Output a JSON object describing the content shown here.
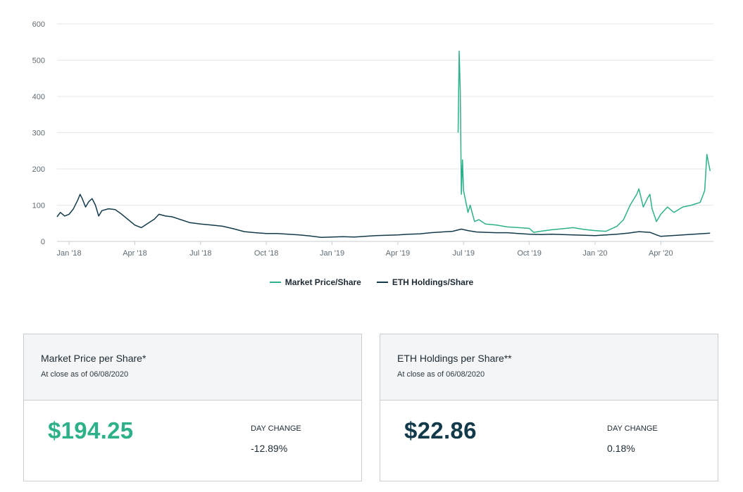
{
  "chart_data": {
    "type": "line",
    "title": "",
    "xlabel": "",
    "ylabel": "",
    "ylim": [
      0,
      600
    ],
    "y_ticks": [
      0,
      100,
      200,
      300,
      400,
      500,
      600
    ],
    "x_ticks": [
      {
        "label": "Jan '18",
        "t": 0
      },
      {
        "label": "Apr '18",
        "t": 3
      },
      {
        "label": "Jul '18",
        "t": 6
      },
      {
        "label": "Oct '18",
        "t": 9
      },
      {
        "label": "Jan '19",
        "t": 12
      },
      {
        "label": "Apr '19",
        "t": 15
      },
      {
        "label": "Jul '19",
        "t": 18
      },
      {
        "label": "Oct '19",
        "t": 21
      },
      {
        "label": "Jan '20",
        "t": 24
      },
      {
        "label": "Apr '20",
        "t": 27
      }
    ],
    "xlim": [
      -0.55,
      29.4
    ],
    "legend_position": "bottom-center",
    "series": [
      {
        "name": "Market Price/Share",
        "color": "#2eb08b",
        "points": [
          [
            17.75,
            300
          ],
          [
            17.8,
            525
          ],
          [
            17.85,
            410
          ],
          [
            17.9,
            130
          ],
          [
            17.95,
            225
          ],
          [
            18.0,
            140
          ],
          [
            18.1,
            110
          ],
          [
            18.2,
            80
          ],
          [
            18.3,
            100
          ],
          [
            18.5,
            55
          ],
          [
            18.7,
            60
          ],
          [
            19.0,
            48
          ],
          [
            19.5,
            45
          ],
          [
            20.0,
            40
          ],
          [
            20.5,
            38
          ],
          [
            21.0,
            36
          ],
          [
            21.2,
            25
          ],
          [
            21.5,
            28
          ],
          [
            22.0,
            32
          ],
          [
            22.5,
            35
          ],
          [
            23.0,
            38
          ],
          [
            23.5,
            33
          ],
          [
            24.0,
            30
          ],
          [
            24.5,
            28
          ],
          [
            25.0,
            42
          ],
          [
            25.3,
            60
          ],
          [
            25.6,
            100
          ],
          [
            25.9,
            130
          ],
          [
            26.0,
            145
          ],
          [
            26.2,
            95
          ],
          [
            26.4,
            120
          ],
          [
            26.5,
            130
          ],
          [
            26.6,
            90
          ],
          [
            26.8,
            55
          ],
          [
            27.0,
            75
          ],
          [
            27.3,
            95
          ],
          [
            27.6,
            80
          ],
          [
            28.0,
            95
          ],
          [
            28.4,
            100
          ],
          [
            28.8,
            108
          ],
          [
            29.0,
            140
          ],
          [
            29.1,
            240
          ],
          [
            29.25,
            194.25
          ]
        ]
      },
      {
        "name": "ETH Holdings/Share",
        "color": "#123a4a",
        "points": [
          [
            -0.55,
            68
          ],
          [
            -0.4,
            80
          ],
          [
            -0.2,
            70
          ],
          [
            0.0,
            75
          ],
          [
            0.2,
            90
          ],
          [
            0.4,
            115
          ],
          [
            0.5,
            130
          ],
          [
            0.6,
            118
          ],
          [
            0.75,
            95
          ],
          [
            0.9,
            110
          ],
          [
            1.05,
            118
          ],
          [
            1.2,
            100
          ],
          [
            1.35,
            70
          ],
          [
            1.5,
            85
          ],
          [
            1.8,
            90
          ],
          [
            2.1,
            88
          ],
          [
            2.4,
            75
          ],
          [
            2.7,
            60
          ],
          [
            3.0,
            45
          ],
          [
            3.3,
            38
          ],
          [
            3.6,
            50
          ],
          [
            3.9,
            62
          ],
          [
            4.1,
            75
          ],
          [
            4.4,
            70
          ],
          [
            4.7,
            68
          ],
          [
            5.0,
            62
          ],
          [
            5.5,
            52
          ],
          [
            6.0,
            48
          ],
          [
            6.5,
            45
          ],
          [
            7.0,
            42
          ],
          [
            7.5,
            35
          ],
          [
            8.0,
            27
          ],
          [
            8.5,
            24
          ],
          [
            9.0,
            22
          ],
          [
            9.5,
            22
          ],
          [
            10.0,
            20
          ],
          [
            10.5,
            18
          ],
          [
            11.0,
            15
          ],
          [
            11.5,
            11
          ],
          [
            12.0,
            12
          ],
          [
            12.5,
            13
          ],
          [
            13.0,
            12
          ],
          [
            13.5,
            14
          ],
          [
            14.0,
            16
          ],
          [
            14.5,
            17
          ],
          [
            15.0,
            18
          ],
          [
            15.5,
            20
          ],
          [
            16.0,
            21
          ],
          [
            16.5,
            24
          ],
          [
            17.0,
            26
          ],
          [
            17.5,
            28
          ],
          [
            17.9,
            34
          ],
          [
            18.2,
            30
          ],
          [
            18.6,
            26
          ],
          [
            19.0,
            25
          ],
          [
            19.5,
            24
          ],
          [
            20.0,
            24
          ],
          [
            20.5,
            22
          ],
          [
            21.0,
            20
          ],
          [
            21.5,
            19
          ],
          [
            22.0,
            20
          ],
          [
            22.5,
            19
          ],
          [
            23.0,
            18
          ],
          [
            23.5,
            17
          ],
          [
            24.0,
            16
          ],
          [
            24.5,
            18
          ],
          [
            25.0,
            20
          ],
          [
            25.5,
            23
          ],
          [
            26.0,
            27
          ],
          [
            26.5,
            25
          ],
          [
            26.8,
            18
          ],
          [
            27.0,
            14
          ],
          [
            27.5,
            16
          ],
          [
            28.0,
            18
          ],
          [
            28.5,
            20
          ],
          [
            29.0,
            22
          ],
          [
            29.25,
            22.86
          ]
        ]
      }
    ]
  },
  "cards": [
    {
      "title": "Market Price per Share*",
      "subtitle": "At close as of 06/08/2020",
      "price": "$194.25",
      "price_color": "#2eb08b",
      "day_change_label": "DAY CHANGE",
      "day_change_value": "-12.89%"
    },
    {
      "title": "ETH Holdings per Share**",
      "subtitle": "At close as of 06/08/2020",
      "price": "$22.86",
      "price_color": "#123a4a",
      "day_change_label": "DAY CHANGE",
      "day_change_value": "0.18%"
    }
  ]
}
